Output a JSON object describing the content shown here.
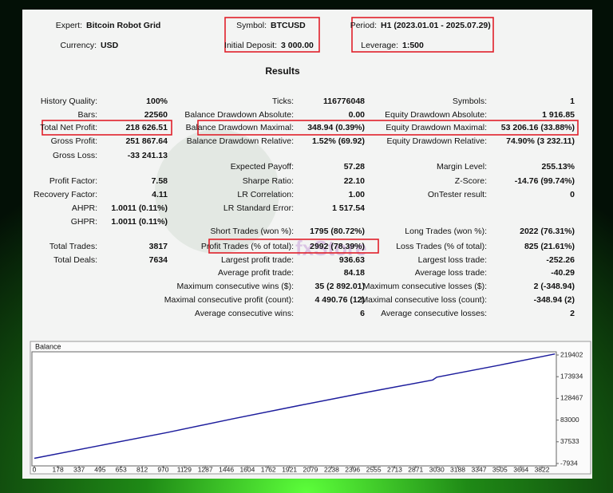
{
  "header": [
    {
      "label": "Expert:",
      "value": "Bitcoin Robot Grid"
    },
    {
      "label": "Currency:",
      "value": "USD"
    },
    {
      "label": "Symbol:",
      "value": "BTCUSD"
    },
    {
      "label": "Initial Deposit:",
      "value": "3 000.00"
    },
    {
      "label": "Period:",
      "value": "H1 (2023.01.01 - 2025.07.29)"
    },
    {
      "label": "Leverage:",
      "value": "1:500"
    }
  ],
  "report": {
    "title": "Results",
    "rows": [
      [
        {
          "label": "History Quality:",
          "value": "100%"
        },
        {
          "label": "Ticks:",
          "value": "116776048"
        },
        {
          "label": "Symbols:",
          "value": "1"
        }
      ],
      [
        {
          "label": "Bars:",
          "value": "22560"
        },
        {
          "label": "Balance Drawdown Absolute:",
          "value": "0.00"
        },
        {
          "label": "Equity Drawdown Absolute:",
          "value": "1 916.85"
        }
      ],
      [
        {
          "label": "Total Net Profit:",
          "value": "218 626.51"
        },
        {
          "label": "Balance Drawdown Maximal:",
          "value": "348.94 (0.39%)"
        },
        {
          "label": "Equity Drawdown Maximal:",
          "value": "53 206.16 (33.88%)"
        }
      ],
      [
        {
          "label": "Gross Profit:",
          "value": "251 867.64"
        },
        {
          "label": "Balance Drawdown Relative:",
          "value": "1.52% (69.92)"
        },
        {
          "label": "Equity Drawdown Relative:",
          "value": "74.90% (3 232.11)"
        }
      ],
      [
        {
          "label": "Gross Loss:",
          "value": "-33 241.13"
        },
        null,
        null
      ],
      [
        null,
        {
          "label": "Expected Payoff:",
          "value": "57.28"
        },
        {
          "label": "Margin Level:",
          "value": "255.13%"
        }
      ],
      [
        {
          "label": "Profit Factor:",
          "value": "7.58"
        },
        {
          "label": "Sharpe Ratio:",
          "value": "22.10"
        },
        {
          "label": "Z-Score:",
          "value": "-14.76 (99.74%)"
        }
      ],
      [
        {
          "label": "Recovery Factor:",
          "value": "4.11"
        },
        {
          "label": "LR Correlation:",
          "value": "1.00"
        },
        {
          "label": "OnTester result:",
          "value": "0"
        }
      ],
      [
        {
          "label": "AHPR:",
          "value": "1.0011 (0.11%)"
        },
        {
          "label": "LR Standard Error:",
          "value": "1 517.54"
        },
        null
      ],
      [
        {
          "label": "GHPR:",
          "value": "1.0011 (0.11%)"
        },
        null,
        null
      ],
      [
        null,
        {
          "label": "Short Trades (won %):",
          "value": "1795 (80.72%)"
        },
        {
          "label": "Long Trades (won %):",
          "value": "2022 (76.31%)"
        }
      ],
      [
        {
          "label": "Total Trades:",
          "value": "3817"
        },
        {
          "label": "Profit Trades (% of total):",
          "value": "2992 (78.39%)"
        },
        {
          "label": "Loss Trades (% of total):",
          "value": "825 (21.61%)"
        }
      ],
      [
        {
          "label": "Total Deals:",
          "value": "7634"
        },
        {
          "label": "Largest profit trade:",
          "value": "936.63"
        },
        {
          "label": "Largest loss trade:",
          "value": "-252.26"
        }
      ],
      [
        null,
        {
          "label": "Average profit trade:",
          "value": "84.18"
        },
        {
          "label": "Average loss trade:",
          "value": "-40.29"
        }
      ],
      [
        null,
        {
          "label": "Maximum consecutive wins ($):",
          "value": "35 (2 892.01)"
        },
        {
          "label": "Maximum consecutive losses ($):",
          "value": "2 (-348.94)"
        }
      ],
      [
        null,
        {
          "label": "Maximal consecutive profit (count):",
          "value": "4 490.76 (12)"
        },
        {
          "label": "Maximal consecutive loss (count):",
          "value": "-348.94 (2)"
        }
      ],
      [
        null,
        {
          "label": "Average consecutive wins:",
          "value": "6"
        },
        {
          "label": "Average consecutive losses:",
          "value": "2"
        }
      ]
    ]
  },
  "watermark": "fxStore",
  "chart_data": {
    "type": "line",
    "x": [
      0,
      500,
      1000,
      1500,
      2000,
      2500,
      3000,
      3030,
      3500,
      3920
    ],
    "series": [
      {
        "name": "Balance",
        "color": "#1c1c9c",
        "values": [
          3000,
          30000,
          57000,
          86000,
          114000,
          141000,
          167000,
          173000,
          198000,
          221627
        ]
      }
    ],
    "xlim": [
      0,
      3930
    ],
    "ylim": [
      -7934,
      219402
    ],
    "xticks": [
      0,
      178,
      337,
      495,
      653,
      812,
      970,
      1129,
      1287,
      1446,
      1604,
      1762,
      1921,
      2079,
      2238,
      2396,
      2555,
      2713,
      2871,
      3030,
      3188,
      3347,
      3505,
      3664,
      3822
    ],
    "yticks": [
      219402,
      173934,
      128467,
      83000,
      37533,
      -7934
    ]
  }
}
